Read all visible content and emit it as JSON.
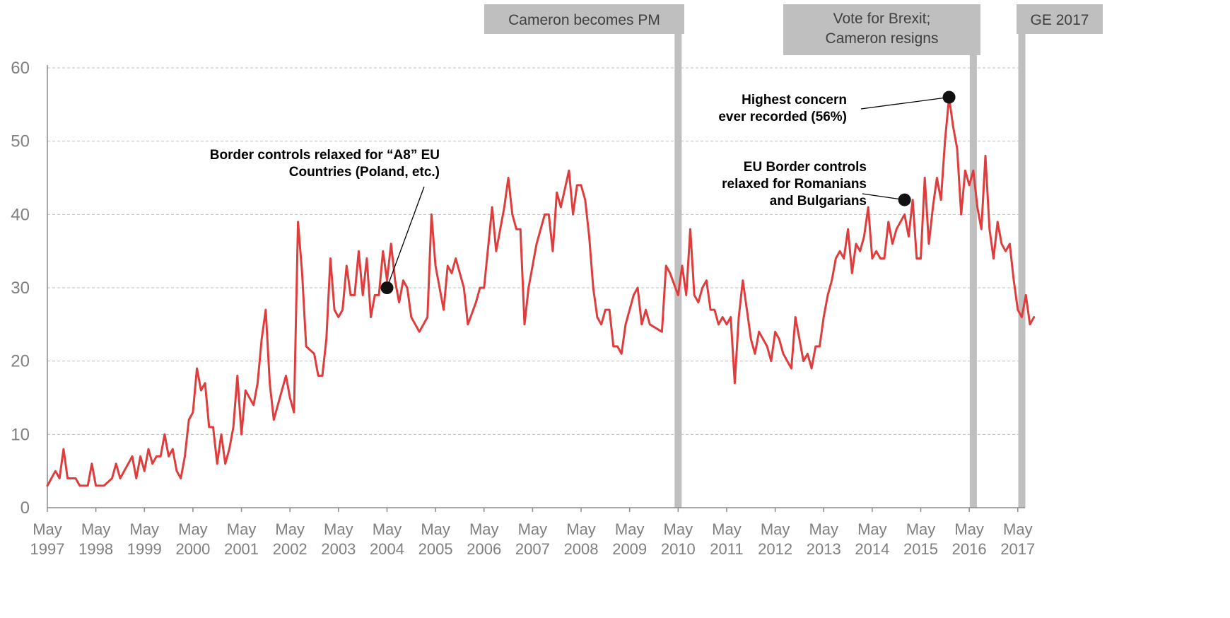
{
  "chart_data": {
    "type": "line",
    "title": "",
    "xlabel": "",
    "ylabel": "",
    "ylim": [
      0,
      60
    ],
    "y_ticks": [
      0,
      10,
      20,
      30,
      40,
      50,
      60
    ],
    "x_start": "1997-05",
    "x_end": "2017-07",
    "x_tick_labels": [
      {
        "date": "1997-05",
        "month": "May",
        "year": "1997"
      },
      {
        "date": "1998-05",
        "month": "May",
        "year": "1998"
      },
      {
        "date": "1999-05",
        "month": "May",
        "year": "1999"
      },
      {
        "date": "2000-05",
        "month": "May",
        "year": "2000"
      },
      {
        "date": "2001-05",
        "month": "May",
        "year": "2001"
      },
      {
        "date": "2002-05",
        "month": "May",
        "year": "2002"
      },
      {
        "date": "2003-05",
        "month": "May",
        "year": "2003"
      },
      {
        "date": "2004-05",
        "month": "May",
        "year": "2004"
      },
      {
        "date": "2005-05",
        "month": "May",
        "year": "2005"
      },
      {
        "date": "2006-05",
        "month": "May",
        "year": "2006"
      },
      {
        "date": "2007-05",
        "month": "May",
        "year": "2007"
      },
      {
        "date": "2008-05",
        "month": "May",
        "year": "2008"
      },
      {
        "date": "2009-05",
        "month": "May",
        "year": "2009"
      },
      {
        "date": "2010-05",
        "month": "May",
        "year": "2010"
      },
      {
        "date": "2011-05",
        "month": "May",
        "year": "2011"
      },
      {
        "date": "2012-05",
        "month": "May",
        "year": "2012"
      },
      {
        "date": "2013-05",
        "month": "May",
        "year": "2013"
      },
      {
        "date": "2014-05",
        "month": "May",
        "year": "2014"
      },
      {
        "date": "2015-05",
        "month": "May",
        "year": "2015"
      },
      {
        "date": "2016-05",
        "month": "May",
        "year": "2016"
      },
      {
        "date": "2017-05",
        "month": "May",
        "year": "2017"
      }
    ],
    "grid": "horizontal-dashed",
    "line_color": "#e03c3c",
    "series": [
      {
        "points": [
          [
            "1997-05",
            3
          ],
          [
            "1997-07",
            5
          ],
          [
            "1997-08",
            4
          ],
          [
            "1997-09",
            8
          ],
          [
            "1997-10",
            4
          ],
          [
            "1997-12",
            4
          ],
          [
            "1998-01",
            3
          ],
          [
            "1998-03",
            3
          ],
          [
            "1998-04",
            6
          ],
          [
            "1998-05",
            3
          ],
          [
            "1998-07",
            3
          ],
          [
            "1998-09",
            4
          ],
          [
            "1998-10",
            6
          ],
          [
            "1998-11",
            4
          ],
          [
            "1999-01",
            6
          ],
          [
            "1999-02",
            7
          ],
          [
            "1999-03",
            4
          ],
          [
            "1999-04",
            7
          ],
          [
            "1999-05",
            5
          ],
          [
            "1999-06",
            8
          ],
          [
            "1999-07",
            6
          ],
          [
            "1999-08",
            7
          ],
          [
            "1999-09",
            7
          ],
          [
            "1999-10",
            10
          ],
          [
            "1999-11",
            7
          ],
          [
            "1999-12",
            8
          ],
          [
            "2000-01",
            5
          ],
          [
            "2000-02",
            4
          ],
          [
            "2000-03",
            7
          ],
          [
            "2000-04",
            12
          ],
          [
            "2000-05",
            13
          ],
          [
            "2000-06",
            19
          ],
          [
            "2000-07",
            16
          ],
          [
            "2000-08",
            17
          ],
          [
            "2000-09",
            11
          ],
          [
            "2000-10",
            11
          ],
          [
            "2000-11",
            6
          ],
          [
            "2000-12",
            10
          ],
          [
            "2001-01",
            6
          ],
          [
            "2001-02",
            8
          ],
          [
            "2001-03",
            11
          ],
          [
            "2001-04",
            18
          ],
          [
            "2001-05",
            10
          ],
          [
            "2001-06",
            16
          ],
          [
            "2001-07",
            15
          ],
          [
            "2001-08",
            14
          ],
          [
            "2001-09",
            17
          ],
          [
            "2001-10",
            23
          ],
          [
            "2001-11",
            27
          ],
          [
            "2001-12",
            17
          ],
          [
            "2002-01",
            12
          ],
          [
            "2002-04",
            18
          ],
          [
            "2002-05",
            15
          ],
          [
            "2002-06",
            13
          ],
          [
            "2002-07",
            39
          ],
          [
            "2002-08",
            32
          ],
          [
            "2002-09",
            22
          ],
          [
            "2002-11",
            21
          ],
          [
            "2002-12",
            18
          ],
          [
            "2003-01",
            18
          ],
          [
            "2003-02",
            23
          ],
          [
            "2003-03",
            34
          ],
          [
            "2003-04",
            27
          ],
          [
            "2003-05",
            26
          ],
          [
            "2003-06",
            27
          ],
          [
            "2003-07",
            33
          ],
          [
            "2003-08",
            29
          ],
          [
            "2003-09",
            29
          ],
          [
            "2003-10",
            35
          ],
          [
            "2003-11",
            29
          ],
          [
            "2003-12",
            34
          ],
          [
            "2004-01",
            26
          ],
          [
            "2004-02",
            29
          ],
          [
            "2004-03",
            29
          ],
          [
            "2004-04",
            35
          ],
          [
            "2004-05",
            31
          ],
          [
            "2004-06",
            36
          ],
          [
            "2004-07",
            31
          ],
          [
            "2004-08",
            28
          ],
          [
            "2004-09",
            31
          ],
          [
            "2004-10",
            30
          ],
          [
            "2004-11",
            26
          ],
          [
            "2005-01",
            24
          ],
          [
            "2005-03",
            26
          ],
          [
            "2005-04",
            40
          ],
          [
            "2005-05",
            33
          ],
          [
            "2005-07",
            27
          ],
          [
            "2005-08",
            33
          ],
          [
            "2005-09",
            32
          ],
          [
            "2005-10",
            34
          ],
          [
            "2005-12",
            30
          ],
          [
            "2006-01",
            25
          ],
          [
            "2006-03",
            28
          ],
          [
            "2006-04",
            30
          ],
          [
            "2006-05",
            30
          ],
          [
            "2006-07",
            41
          ],
          [
            "2006-08",
            35
          ],
          [
            "2006-10",
            41
          ],
          [
            "2006-11",
            45
          ],
          [
            "2006-12",
            40
          ],
          [
            "2007-01",
            38
          ],
          [
            "2007-02",
            38
          ],
          [
            "2007-03",
            25
          ],
          [
            "2007-04",
            30
          ],
          [
            "2007-06",
            36
          ],
          [
            "2007-08",
            40
          ],
          [
            "2007-09",
            40
          ],
          [
            "2007-10",
            35
          ],
          [
            "2007-11",
            43
          ],
          [
            "2007-12",
            41
          ],
          [
            "2008-02",
            46
          ],
          [
            "2008-03",
            40
          ],
          [
            "2008-04",
            44
          ],
          [
            "2008-05",
            44
          ],
          [
            "2008-06",
            42
          ],
          [
            "2008-07",
            37
          ],
          [
            "2008-08",
            30
          ],
          [
            "2008-09",
            26
          ],
          [
            "2008-10",
            25
          ],
          [
            "2008-11",
            27
          ],
          [
            "2008-12",
            27
          ],
          [
            "2009-01",
            22
          ],
          [
            "2009-02",
            22
          ],
          [
            "2009-03",
            21
          ],
          [
            "2009-04",
            25
          ],
          [
            "2009-06",
            29
          ],
          [
            "2009-07",
            30
          ],
          [
            "2009-08",
            25
          ],
          [
            "2009-09",
            27
          ],
          [
            "2009-10",
            25
          ],
          [
            "2010-01",
            24
          ],
          [
            "2010-02",
            33
          ],
          [
            "2010-03",
            32
          ],
          [
            "2010-05",
            29
          ],
          [
            "2010-06",
            33
          ],
          [
            "2010-07",
            29
          ],
          [
            "2010-08",
            38
          ],
          [
            "2010-09",
            29
          ],
          [
            "2010-10",
            28
          ],
          [
            "2010-11",
            30
          ],
          [
            "2010-12",
            31
          ],
          [
            "2011-01",
            27
          ],
          [
            "2011-02",
            27
          ],
          [
            "2011-03",
            25
          ],
          [
            "2011-04",
            26
          ],
          [
            "2011-05",
            25
          ],
          [
            "2011-06",
            26
          ],
          [
            "2011-07",
            17
          ],
          [
            "2011-08",
            26
          ],
          [
            "2011-09",
            31
          ],
          [
            "2011-10",
            27
          ],
          [
            "2011-11",
            23
          ],
          [
            "2011-12",
            21
          ],
          [
            "2012-01",
            24
          ],
          [
            "2012-03",
            22
          ],
          [
            "2012-04",
            20
          ],
          [
            "2012-05",
            24
          ],
          [
            "2012-06",
            23
          ],
          [
            "2012-07",
            21
          ],
          [
            "2012-09",
            19
          ],
          [
            "2012-10",
            26
          ],
          [
            "2012-12",
            20
          ],
          [
            "2013-01",
            21
          ],
          [
            "2013-02",
            19
          ],
          [
            "2013-03",
            22
          ],
          [
            "2013-04",
            22
          ],
          [
            "2013-05",
            26
          ],
          [
            "2013-06",
            29
          ],
          [
            "2013-07",
            31
          ],
          [
            "2013-08",
            34
          ],
          [
            "2013-09",
            35
          ],
          [
            "2013-10",
            34
          ],
          [
            "2013-11",
            38
          ],
          [
            "2013-12",
            32
          ],
          [
            "2014-01",
            36
          ],
          [
            "2014-02",
            35
          ],
          [
            "2014-03",
            37
          ],
          [
            "2014-04",
            41
          ],
          [
            "2014-05",
            34
          ],
          [
            "2014-06",
            35
          ],
          [
            "2014-07",
            34
          ],
          [
            "2014-08",
            34
          ],
          [
            "2014-09",
            39
          ],
          [
            "2014-10",
            36
          ],
          [
            "2014-11",
            38
          ],
          [
            "2014-12",
            39
          ],
          [
            "2015-01",
            40
          ],
          [
            "2015-02",
            37
          ],
          [
            "2015-03",
            42
          ],
          [
            "2015-04",
            34
          ],
          [
            "2015-05",
            34
          ],
          [
            "2015-06",
            45
          ],
          [
            "2015-07",
            36
          ],
          [
            "2015-08",
            41
          ],
          [
            "2015-09",
            45
          ],
          [
            "2015-10",
            42
          ],
          [
            "2015-11",
            50
          ],
          [
            "2015-12",
            56
          ],
          [
            "2016-01",
            52
          ],
          [
            "2016-02",
            49
          ],
          [
            "2016-03",
            40
          ],
          [
            "2016-04",
            46
          ],
          [
            "2016-05",
            44
          ],
          [
            "2016-06",
            46
          ],
          [
            "2016-07",
            41
          ],
          [
            "2016-08",
            38
          ],
          [
            "2016-09",
            48
          ],
          [
            "2016-10",
            38
          ],
          [
            "2016-11",
            34
          ],
          [
            "2016-12",
            39
          ],
          [
            "2017-01",
            36
          ],
          [
            "2017-02",
            35
          ],
          [
            "2017-03",
            36
          ],
          [
            "2017-04",
            31
          ],
          [
            "2017-05",
            27
          ],
          [
            "2017-06",
            26
          ],
          [
            "2017-07",
            29
          ],
          [
            "2017-08",
            25
          ],
          [
            "2017-09",
            26
          ]
        ]
      }
    ],
    "event_lines": [
      {
        "date": "2010-05",
        "label_lines": [
          "Cameron becomes PM"
        ]
      },
      {
        "date": "2016-06",
        "label_lines": [
          "Vote for Brexit;",
          "Cameron resigns"
        ]
      },
      {
        "date": "2017-06",
        "label_lines": [
          "GE 2017"
        ]
      }
    ],
    "annotations": [
      {
        "point": [
          "2004-05",
          30
        ],
        "label_lines": [
          "Border controls relaxed for “A8” EU",
          "Countries (Poland, etc.)"
        ]
      },
      {
        "point": [
          "2015-12",
          56
        ],
        "label_lines": [
          "Highest concern",
          "ever recorded (56%)"
        ]
      },
      {
        "point": [
          "2015-01",
          42
        ],
        "label_lines": [
          "EU Border controls",
          "relaxed for Romanians",
          "and Bulgarians"
        ]
      }
    ]
  }
}
